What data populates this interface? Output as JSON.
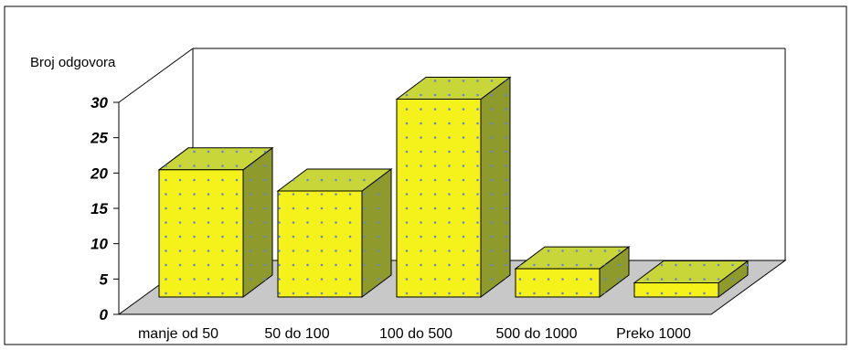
{
  "chart_data": {
    "type": "bar",
    "ylabel": "Broj odgovora",
    "categories": [
      "manje od 50",
      "50 do 100",
      "100 do 500",
      "500 do 1000",
      "Preko 1000"
    ],
    "values": [
      18,
      15,
      28,
      4,
      2
    ],
    "ylim": [
      0,
      30
    ],
    "yticks": [
      "0",
      "5",
      "10",
      "15",
      "20",
      "25",
      "30"
    ],
    "grid": false,
    "legend": "none",
    "colors": {
      "bar_front": "#f4f21a",
      "bar_top": "#c9d63a",
      "bar_side": "#8f9a2c",
      "dots": "#6a86c8",
      "floor": "#c8c8c8"
    }
  }
}
